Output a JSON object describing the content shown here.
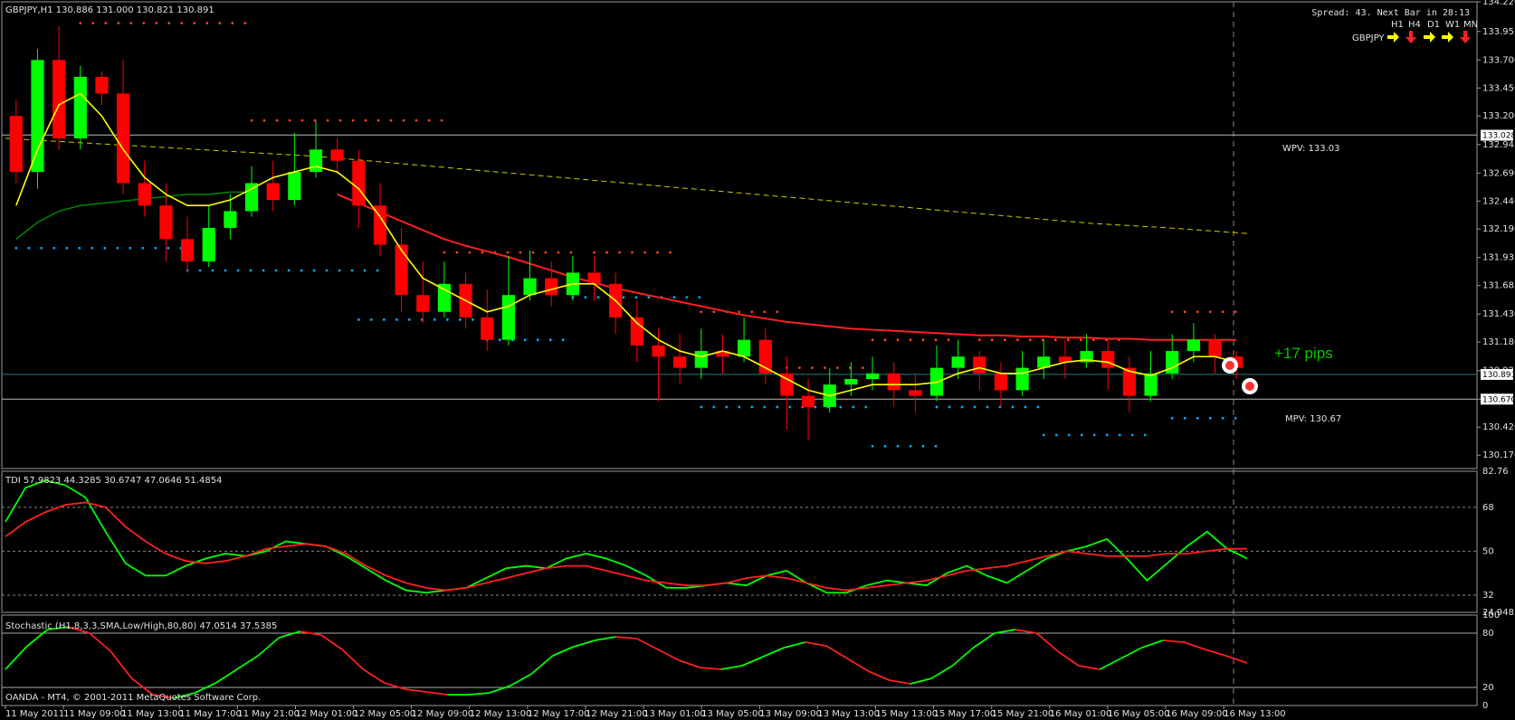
{
  "window": {
    "symbol_header": "GBPJPY,H1  130.886 131.000 130.821 130.891",
    "spread_text": "Spread: 43. Next Bar in 28:13",
    "footer_text": "OANDA - MT4, © 2001-2011 MetaQuotes Software Corp."
  },
  "trend_panel": {
    "timeframes": [
      "H1",
      "H4",
      "D1",
      "W1",
      "MN"
    ],
    "symbol": "GBPJPY",
    "arrows": [
      "right",
      "down",
      "right",
      "right",
      "down"
    ],
    "colors": {
      "right": "#ffff00",
      "down": "#ff2020"
    }
  },
  "annotations": {
    "wpv_label": "WPV: 133.03",
    "mpv_label": "MPV: 130.67",
    "pips_label": "+17 pips"
  },
  "price_axis": {
    "ticks": [
      "134.220",
      "133.955",
      "133.700",
      "133.450",
      "133.200",
      "132.945",
      "132.690",
      "132.440",
      "132.190",
      "131.935",
      "131.685",
      "131.430",
      "131.180",
      "130.925",
      "130.670",
      "130.420",
      "130.170"
    ],
    "markers": [
      "133.028",
      "130.891",
      "130.670"
    ]
  },
  "tdi_panel": {
    "header": "TDI 57.9823 44.3285 30.6747 47.0646 51.4854",
    "ticks": [
      "82.76",
      "68",
      "50",
      "32",
      "24.9485"
    ]
  },
  "stoch_panel": {
    "header": "Stochastic (H1,8,3,3,SMA,Low/High,80,80) 47.0514 37.5385",
    "ticks": [
      "100",
      "80",
      "20",
      "0"
    ]
  },
  "time_axis": {
    "labels": [
      "11 May 2011",
      "11 May 09:00",
      "11 May 13:00",
      "11 May 17:00",
      "11 May 21:00",
      "12 May 01:00",
      "12 May 05:00",
      "12 May 09:00",
      "12 May 13:00",
      "12 May 17:00",
      "12 May 21:00",
      "13 May 01:00",
      "13 May 05:00",
      "13 May 09:00",
      "13 May 13:00",
      "15 May 13:00",
      "15 May 17:00",
      "15 May 21:00",
      "16 May 01:00",
      "16 May 05:00",
      "16 May 09:00",
      "16 May 13:00"
    ]
  },
  "chart_data": [
    {
      "type": "candlestick",
      "title": "GBPJPY,H1",
      "ylim": [
        130.05,
        134.22
      ],
      "colors": {
        "bull": "#00ff00",
        "bear": "#ff0000",
        "ma_fast": "#ffff00",
        "ma_slow": "#ff2020",
        "ma_mid": "#008800",
        "ma_long": "#cccc00",
        "pivot_high": "#ff4020",
        "pivot_low": "#00aaff"
      },
      "levels": {
        "wpv": 133.03,
        "mpv": 130.67,
        "current": 130.891
      },
      "candles": [
        [
          133.2,
          132.7,
          133.35,
          132.6
        ],
        [
          132.7,
          133.7,
          133.8,
          132.55
        ],
        [
          133.7,
          133.0,
          134.0,
          132.9
        ],
        [
          133.0,
          133.55,
          133.65,
          132.9
        ],
        [
          133.55,
          133.4,
          133.6,
          133.3
        ],
        [
          133.4,
          132.6,
          133.7,
          132.5
        ],
        [
          132.6,
          132.4,
          132.8,
          132.3
        ],
        [
          132.4,
          132.1,
          132.6,
          131.9
        ],
        [
          132.1,
          131.9,
          132.3,
          131.8
        ],
        [
          131.9,
          132.2,
          132.4,
          131.85
        ],
        [
          132.2,
          132.35,
          132.5,
          132.1
        ],
        [
          132.35,
          132.6,
          132.75,
          132.3
        ],
        [
          132.6,
          132.45,
          132.8,
          132.35
        ],
        [
          132.45,
          132.7,
          133.05,
          132.4
        ],
        [
          132.7,
          132.9,
          133.15,
          132.65
        ],
        [
          132.9,
          132.8,
          133.0,
          132.7
        ],
        [
          132.8,
          132.4,
          132.9,
          132.2
        ],
        [
          132.4,
          132.05,
          132.6,
          131.95
        ],
        [
          132.05,
          131.6,
          132.2,
          131.45
        ],
        [
          131.6,
          131.45,
          131.9,
          131.35
        ],
        [
          131.45,
          131.7,
          131.9,
          131.4
        ],
        [
          131.7,
          131.4,
          131.8,
          131.3
        ],
        [
          131.4,
          131.2,
          131.65,
          131.1
        ],
        [
          131.2,
          131.6,
          131.95,
          131.15
        ],
        [
          131.6,
          131.75,
          132.0,
          131.55
        ],
        [
          131.75,
          131.6,
          131.9,
          131.5
        ],
        [
          131.6,
          131.8,
          131.95,
          131.55
        ],
        [
          131.8,
          131.7,
          131.95,
          131.55
        ],
        [
          131.7,
          131.4,
          131.8,
          131.25
        ],
        [
          131.4,
          131.15,
          131.55,
          131.0
        ],
        [
          131.15,
          131.05,
          131.3,
          130.65
        ],
        [
          131.05,
          130.95,
          131.25,
          130.8
        ],
        [
          130.95,
          131.1,
          131.3,
          130.85
        ],
        [
          131.1,
          131.05,
          131.25,
          130.9
        ],
        [
          131.05,
          131.2,
          131.4,
          131.0
        ],
        [
          131.2,
          130.9,
          131.3,
          130.8
        ],
        [
          130.9,
          130.7,
          131.05,
          130.4
        ],
        [
          130.7,
          130.6,
          130.85,
          130.3
        ],
        [
          130.6,
          130.8,
          130.95,
          130.55
        ],
        [
          130.8,
          130.85,
          131.0,
          130.7
        ],
        [
          130.85,
          130.9,
          131.05,
          130.75
        ],
        [
          130.9,
          130.75,
          131.0,
          130.6
        ],
        [
          130.75,
          130.7,
          130.9,
          130.55
        ],
        [
          130.7,
          130.95,
          131.15,
          130.65
        ],
        [
          130.95,
          131.05,
          131.2,
          130.85
        ],
        [
          131.05,
          130.9,
          131.1,
          130.75
        ],
        [
          130.9,
          130.75,
          131.0,
          130.6
        ],
        [
          130.75,
          130.95,
          131.1,
          130.7
        ],
        [
          130.95,
          131.05,
          131.2,
          130.85
        ],
        [
          131.05,
          131.0,
          131.2,
          130.85
        ],
        [
          131.0,
          131.1,
          131.25,
          130.95
        ],
        [
          131.1,
          130.95,
          131.2,
          130.75
        ],
        [
          130.95,
          130.7,
          131.05,
          130.55
        ],
        [
          130.7,
          130.9,
          131.1,
          130.65
        ],
        [
          130.9,
          131.1,
          131.25,
          130.85
        ],
        [
          131.1,
          131.2,
          131.35,
          131.0
        ],
        [
          131.2,
          131.05,
          131.25,
          130.9
        ],
        [
          131.05,
          130.95,
          131.1,
          130.85
        ]
      ],
      "ma_fast": [
        132.4,
        132.9,
        133.3,
        133.4,
        133.2,
        132.9,
        132.65,
        132.5,
        132.4,
        132.4,
        132.45,
        132.55,
        132.65,
        132.7,
        132.75,
        132.7,
        132.55,
        132.3,
        132.0,
        131.75,
        131.65,
        131.55,
        131.45,
        131.5,
        131.6,
        131.65,
        131.7,
        131.7,
        131.55,
        131.35,
        131.2,
        131.1,
        131.05,
        131.1,
        131.05,
        130.95,
        130.85,
        130.75,
        130.7,
        130.75,
        130.8,
        130.8,
        130.8,
        130.82,
        130.9,
        130.95,
        130.9,
        130.9,
        130.95,
        131.0,
        131.02,
        131.0,
        130.92,
        130.88,
        130.95,
        131.05,
        131.05,
        131.0
      ],
      "ma_slow": [
        null,
        null,
        null,
        null,
        null,
        null,
        null,
        null,
        null,
        null,
        null,
        null,
        null,
        null,
        null,
        132.5,
        132.42,
        132.34,
        132.26,
        132.18,
        132.1,
        132.04,
        131.99,
        131.94,
        131.88,
        131.82,
        131.76,
        131.71,
        131.66,
        131.62,
        131.58,
        131.54,
        131.5,
        131.46,
        131.42,
        131.39,
        131.36,
        131.34,
        131.32,
        131.3,
        131.29,
        131.28,
        131.27,
        131.26,
        131.25,
        131.24,
        131.24,
        131.23,
        131.23,
        131.22,
        131.22,
        131.21,
        131.21,
        131.2,
        131.2,
        131.2,
        131.2,
        131.2
      ],
      "ma_mid": [
        132.1,
        132.25,
        132.35,
        132.4,
        132.42,
        132.44,
        132.46,
        132.48,
        132.5,
        132.5,
        132.52,
        132.52
      ],
      "ma_long": [
        133.0,
        132.96,
        132.92,
        132.88,
        132.84,
        132.78,
        132.72,
        132.66,
        132.6,
        132.54,
        132.48,
        132.42,
        132.36,
        132.3,
        132.24,
        132.2,
        132.15
      ],
      "pivot_high_dots": [
        [
          3,
          11,
          134.03
        ],
        [
          11,
          20,
          133.16
        ],
        [
          20,
          26,
          131.98
        ],
        [
          27,
          31,
          131.98
        ],
        [
          32,
          36,
          131.45
        ],
        [
          36,
          40,
          130.95
        ],
        [
          40,
          44,
          131.2
        ],
        [
          45,
          52,
          131.2
        ],
        [
          54,
          57,
          131.45
        ]
      ],
      "pivot_low_dots": [
        [
          0,
          8,
          132.02
        ],
        [
          8,
          17,
          131.82
        ],
        [
          16,
          22,
          131.38
        ],
        [
          22,
          26,
          131.2
        ],
        [
          26,
          32,
          131.58
        ],
        [
          32,
          40,
          130.6
        ],
        [
          40,
          43,
          130.25
        ],
        [
          43,
          48,
          130.6
        ],
        [
          48,
          53,
          130.35
        ],
        [
          54,
          57,
          130.5
        ]
      ]
    },
    {
      "type": "line",
      "title": "TDI",
      "ylim": [
        24.9485,
        82.76
      ],
      "levels": [
        68,
        50,
        32
      ],
      "series": [
        {
          "color": "#00ff00",
          "values": [
            62,
            76,
            79,
            77,
            72,
            58,
            45,
            40,
            40,
            44,
            47,
            49,
            48,
            50,
            54,
            53,
            52,
            48,
            43,
            38,
            34,
            33,
            34,
            35,
            39,
            43,
            44,
            43,
            47,
            49,
            47,
            44,
            40,
            35,
            35,
            36,
            37,
            36,
            40,
            42,
            37,
            33,
            33,
            36,
            38,
            37,
            36,
            41,
            44,
            40,
            37,
            42,
            47,
            50,
            52,
            55,
            47,
            38,
            45,
            52,
            58,
            51,
            47
          ]
        },
        {
          "color": "#ff2020",
          "values": [
            56,
            62,
            66,
            69,
            70,
            68,
            60,
            54,
            49,
            46,
            45,
            46,
            48,
            51,
            52,
            53,
            52,
            49,
            44,
            40,
            37,
            35,
            34,
            35,
            37,
            39,
            41,
            43,
            44,
            44,
            42,
            40,
            38,
            37,
            36,
            36,
            37,
            39,
            40,
            39,
            37,
            35,
            34,
            35,
            36,
            37,
            38,
            40,
            42,
            43,
            44,
            46,
            48,
            50,
            49,
            48,
            48,
            48,
            49,
            49,
            50,
            51,
            51
          ]
        }
      ]
    },
    {
      "type": "line",
      "title": "Stochastic (H1,8,3,3,SMA,Low/High,80,80)",
      "ylim": [
        0,
        100
      ],
      "levels": [
        80,
        20
      ],
      "series": [
        {
          "color": "#00ff00",
          "values": [
            40,
            65,
            84,
            87,
            80,
            60,
            30,
            12,
            8,
            14,
            25,
            40,
            55,
            75,
            82,
            78,
            62,
            40,
            25,
            18,
            15,
            12,
            12,
            14,
            22,
            35,
            55,
            65,
            72,
            76,
            74,
            62,
            50,
            42,
            40,
            44,
            54,
            64,
            70,
            66,
            52,
            38,
            28,
            24,
            30,
            44,
            64,
            80,
            84,
            80,
            60,
            44,
            40,
            52,
            64,
            72,
            70,
            62,
            55,
            47
          ]
        },
        {
          "color": "#ff2020",
          "values": [
            null,
            null,
            null,
            null,
            null,
            null,
            null,
            null,
            null,
            null,
            null,
            null,
            null,
            null,
            null,
            null,
            null,
            null,
            null,
            null,
            null,
            null,
            null,
            null,
            null,
            null,
            null,
            null,
            null,
            null,
            null,
            null,
            null,
            null,
            null,
            null,
            null,
            null,
            null,
            null,
            null,
            null,
            null,
            null,
            null,
            null,
            null,
            null,
            null,
            null,
            null,
            null,
            null,
            null,
            null,
            null,
            null,
            null,
            null,
            null
          ]
        }
      ]
    }
  ]
}
